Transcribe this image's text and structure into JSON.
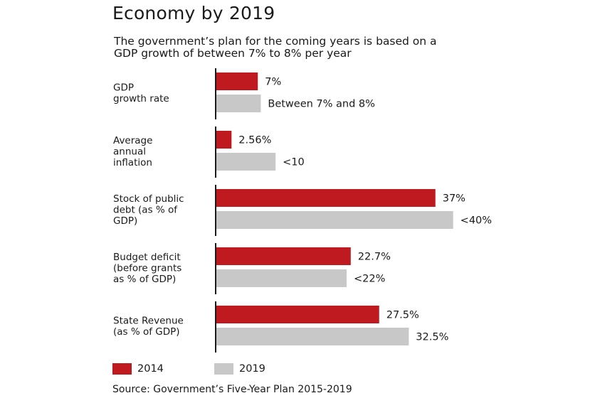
{
  "title": "Economy by 2019",
  "subtitle_lines": [
    "The government’s plan for the coming years is based on a",
    "GDP growth of between 7% to 8% per year"
  ],
  "source": "Source: Government’s Five-Year Plan 2015-2019",
  "colors": {
    "series_2014": "#be1a1f",
    "series_2019": "#c8c8c8",
    "axis": "#1a1a1a"
  },
  "chart_data": {
    "type": "bar",
    "orientation": "horizontal",
    "legend_position": "bottom-left",
    "grid": false,
    "xlim": [
      0,
      41
    ],
    "categories": [
      [
        "GDP",
        "growth rate"
      ],
      [
        "Average",
        "annual",
        "inflation"
      ],
      [
        "Stock of public",
        "debt (as % of",
        "GDP)"
      ],
      [
        "Budget deficit",
        "(before grants",
        "as % of GDP)"
      ],
      [
        "State Revenue",
        "(as % of GDP)"
      ]
    ],
    "series": [
      {
        "name": "2014",
        "values": [
          7,
          2.56,
          37,
          22.7,
          27.5
        ],
        "labels": [
          "7%",
          "2.56%",
          "37%",
          "22.7%",
          "27.5%"
        ]
      },
      {
        "name": "2019",
        "values": [
          7.5,
          10,
          40,
          22,
          32.5
        ],
        "labels": [
          "Between 7% and 8%",
          "<10",
          "<40%",
          "<22%",
          "32.5%"
        ]
      }
    ]
  }
}
